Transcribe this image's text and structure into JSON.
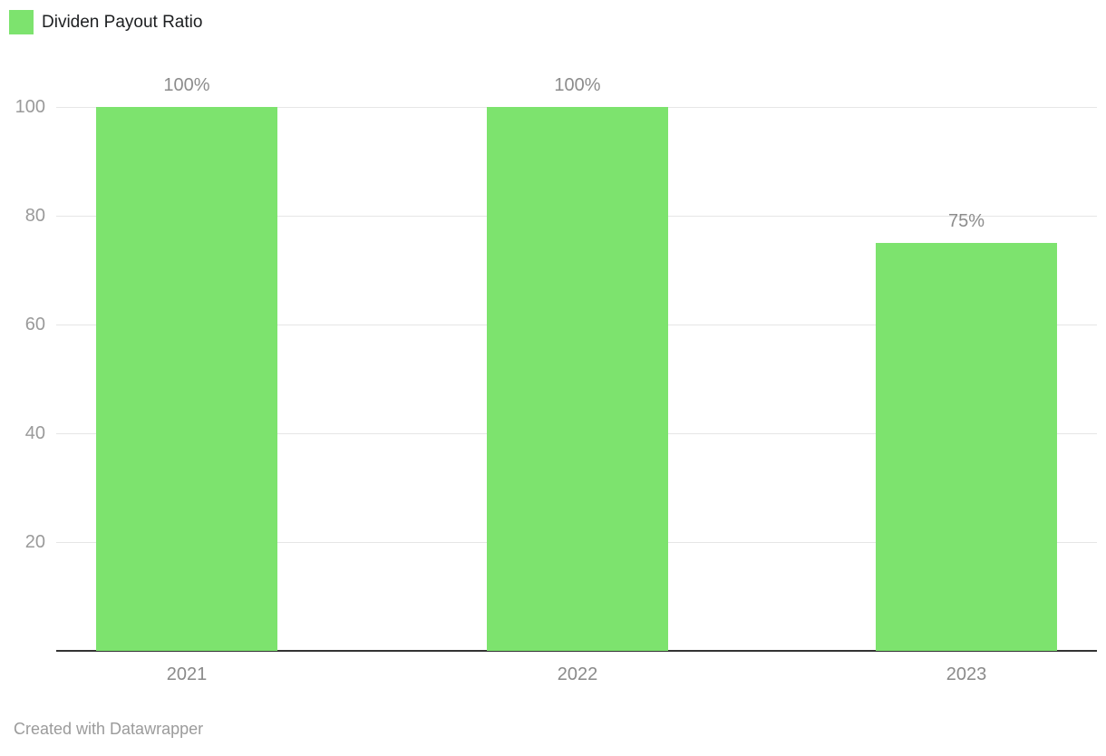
{
  "legend": {
    "label": "Dividen Payout Ratio"
  },
  "footer": {
    "attribution": "Created with Datawrapper"
  },
  "colors": {
    "bar": "#7de36e",
    "grid": "#e6e6e6",
    "axis": "#333333",
    "tick_label": "#9a9a9a",
    "value_label": "#8c8c8c",
    "category_label": "#8a8a8a",
    "legend_text": "#1d1f21",
    "footer_text": "#9b9b9b",
    "background": "#ffffff"
  },
  "chart_data": {
    "type": "bar",
    "title": "Dividen Payout Ratio",
    "categories": [
      "2021",
      "2022",
      "2023"
    ],
    "values": [
      100,
      100,
      75
    ],
    "value_labels": [
      "100%",
      "100%",
      "75%"
    ],
    "yticks": [
      20,
      40,
      60,
      80,
      100
    ],
    "ylim": [
      0,
      100
    ],
    "grid": true,
    "grid_behind_bars": true,
    "legend_position": "top-left",
    "legend_entries": [
      "Dividen Payout Ratio"
    ],
    "xlabel": "",
    "ylabel": "",
    "attribution": "Created with Datawrapper"
  }
}
